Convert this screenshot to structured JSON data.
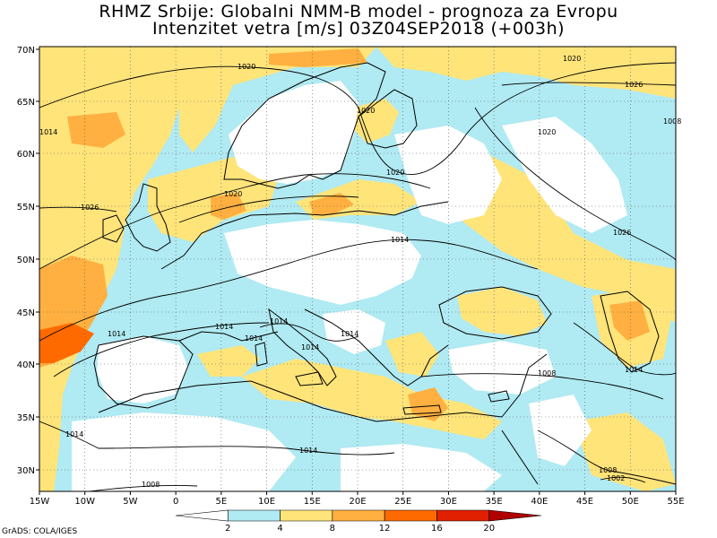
{
  "title": {
    "line1": "RHMZ Srbije: Globalni NMM-B model - prognoza za Evropu",
    "line2": "Intenzitet vetra [m/s] 03Z04SEP2018 (+003h)"
  },
  "map": {
    "lat_ticks": [
      "70N",
      "65N",
      "60N",
      "55N",
      "50N",
      "45N",
      "40N",
      "35N",
      "30N"
    ],
    "lon_ticks": [
      "15W",
      "10W",
      "5W",
      "0",
      "5E",
      "10E",
      "15E",
      "20E",
      "25E",
      "30E",
      "35E",
      "40E",
      "45E",
      "50E",
      "55E"
    ],
    "isobar_labels": [
      "1020",
      "1020",
      "1026",
      "1020",
      "1020",
      "1020",
      "1026",
      "1026",
      "1014",
      "1014",
      "1014",
      "1014",
      "1014",
      "1008",
      "1014",
      "1014",
      "1014",
      "1008",
      "1008",
      "1002",
      "1008",
      "1014",
      "1014",
      "1020",
      "1014"
    ]
  },
  "colorbar": {
    "labels": [
      "2",
      "4",
      "8",
      "12",
      "16",
      "20"
    ],
    "colors": [
      "#ffffff",
      "#b0eaf2",
      "#ffe47a",
      "#ffb040",
      "#ff6a00",
      "#e02000",
      "#b00000"
    ]
  },
  "credit": "GrADS: COLA/IGES"
}
